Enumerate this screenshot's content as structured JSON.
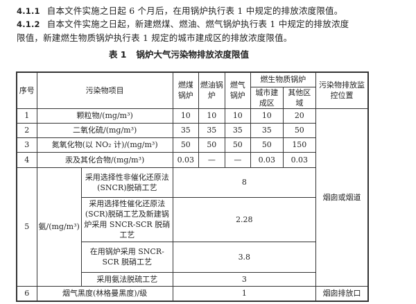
{
  "paragraphs": [
    {
      "num": "4.1.1",
      "text": "自本文件实施之日起 6 个月后，在用锅炉执行表 1 中规定的排放浓度限值。"
    },
    {
      "num": "4.1.2",
      "text": "自本文件实施之日起，新建燃煤、燃油、燃气锅炉执行表 1 中规定的排放浓度限值，新建燃生物质锅炉执行表 1 规定的城市建成区的排放浓度限值。"
    }
  ],
  "table": {
    "label": "表 1",
    "title": "锅炉大气污染物排放浓度限值",
    "headers": {
      "no": "序号",
      "item": "污染物项目",
      "coal": "燃煤锅炉",
      "oil": "燃油锅炉",
      "gas": "燃气锅炉",
      "bio": "燃生物质锅炉",
      "urban": "城市建成区",
      "other": "其他区域",
      "monitor": "污染物排放监控位置"
    },
    "rows": [
      {
        "no": "1",
        "item": "颗粒物/(mg/m³)",
        "coal": "10",
        "oil": "10",
        "gas": "10",
        "urban": "10",
        "other": "20"
      },
      {
        "no": "2",
        "item": "二氧化硫/(mg/m³)",
        "coal": "35",
        "oil": "35",
        "gas": "35",
        "urban": "35",
        "other": "50"
      },
      {
        "no": "3",
        "item": "氮氧化物(以 NO₂ 计)/(mg/m³)",
        "coal": "50",
        "oil": "50",
        "gas": "50",
        "urban": "50",
        "other": "150"
      },
      {
        "no": "4",
        "item": "汞及其化合物/(mg/m³)",
        "coal": "0.03",
        "oil": "—",
        "gas": "—",
        "urban": "0.03",
        "other": "0.03"
      }
    ],
    "ammonia": {
      "no": "5",
      "item": "氨/(mg/m³)",
      "subs": [
        {
          "process": "采用选择性非催化还原法(SNCR)脱硝工艺",
          "value": "8"
        },
        {
          "process": "采用选择性催化还原法(SCR)脱硝工艺及新建锅炉采用 SNCR-SCR 脱硝工艺",
          "value": "2.28"
        },
        {
          "process": "在用锅炉采用 SNCR-SCR 脱硝工艺",
          "value": "3.8"
        },
        {
          "process": "采用氨法脱硫工艺",
          "value": "3"
        }
      ]
    },
    "monitor_1_5": "烟囱或烟道",
    "row6": {
      "no": "6",
      "item": "烟气黑度(林格曼黑度)/级",
      "value": "1",
      "monitor": "烟囱排放口"
    }
  }
}
